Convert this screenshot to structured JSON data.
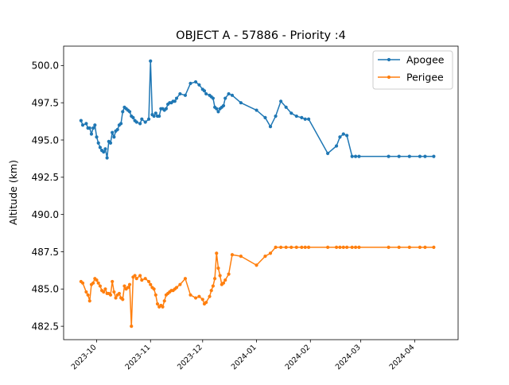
{
  "chart_data": {
    "type": "line",
    "title": "OBJECT A - 57886 - Priority :4",
    "xlabel": "",
    "ylabel": "Altitude (km)",
    "xlim": [
      "2023-09-12",
      "2024-04-26"
    ],
    "ylim": [
      481.6,
      501.3
    ],
    "y_ticks": [
      482.5,
      485.0,
      487.5,
      490.0,
      492.5,
      495.0,
      497.5,
      500.0
    ],
    "y_tick_labels": [
      "482.5",
      "485.0",
      "487.5",
      "490.0",
      "492.5",
      "495.0",
      "497.5",
      "500.0"
    ],
    "x_ticks": [
      "2023-10-01",
      "2023-11-01",
      "2023-12-01",
      "2024-01-01",
      "2024-02-01",
      "2024-03-01",
      "2024-04-01"
    ],
    "x_tick_labels": [
      "2023-10",
      "2023-11",
      "2023-12",
      "2024-01",
      "2024-02",
      "2024-03",
      "2024-04"
    ],
    "grid": false,
    "legend_position": "top-right",
    "series": [
      {
        "name": "Apogee",
        "color": "#1f77b4",
        "x": [
          "2023-09-22",
          "2023-09-23",
          "2023-09-25",
          "2023-09-26",
          "2023-09-27",
          "2023-09-28",
          "2023-09-29",
          "2023-09-30",
          "2023-10-01",
          "2023-10-02",
          "2023-10-03",
          "2023-10-04",
          "2023-10-05",
          "2023-10-06",
          "2023-10-07",
          "2023-10-08",
          "2023-10-09",
          "2023-10-10",
          "2023-10-11",
          "2023-10-12",
          "2023-10-13",
          "2023-10-14",
          "2023-10-15",
          "2023-10-16",
          "2023-10-17",
          "2023-10-18",
          "2023-10-19",
          "2023-10-20",
          "2023-10-21",
          "2023-10-22",
          "2023-10-23",
          "2023-10-24",
          "2023-10-26",
          "2023-10-27",
          "2023-10-29",
          "2023-10-31",
          "2023-11-01",
          "2023-11-02",
          "2023-11-03",
          "2023-11-04",
          "2023-11-05",
          "2023-11-06",
          "2023-11-07",
          "2023-11-08",
          "2023-11-09",
          "2023-11-10",
          "2023-11-11",
          "2023-11-12",
          "2023-11-13",
          "2023-11-14",
          "2023-11-15",
          "2023-11-16",
          "2023-11-18",
          "2023-11-21",
          "2023-11-24",
          "2023-11-27",
          "2023-11-29",
          "2023-12-01",
          "2023-12-02",
          "2023-12-03",
          "2023-12-05",
          "2023-12-06",
          "2023-12-07",
          "2023-12-08",
          "2023-12-09",
          "2023-12-10",
          "2023-12-11",
          "2023-12-12",
          "2023-12-13",
          "2023-12-14",
          "2023-12-16",
          "2023-12-18",
          "2023-12-23",
          "2024-01-01",
          "2024-01-06",
          "2024-01-09",
          "2024-01-12",
          "2024-01-15",
          "2024-01-18",
          "2024-01-21",
          "2024-01-24",
          "2024-01-27",
          "2024-01-29",
          "2024-01-31",
          "2024-02-11",
          "2024-02-16",
          "2024-02-18",
          "2024-02-20",
          "2024-02-22",
          "2024-02-25",
          "2024-02-27",
          "2024-02-29",
          "2024-03-17",
          "2024-03-23",
          "2024-03-29",
          "2024-04-04",
          "2024-04-07",
          "2024-04-12"
        ],
        "values": [
          496.3,
          496.0,
          496.1,
          495.8,
          495.8,
          495.4,
          495.8,
          496.0,
          495.2,
          494.8,
          494.5,
          494.3,
          494.2,
          494.4,
          493.8,
          494.9,
          494.8,
          495.5,
          495.2,
          495.6,
          495.7,
          496.0,
          496.1,
          496.9,
          497.2,
          497.1,
          497.0,
          496.9,
          496.6,
          496.5,
          496.3,
          496.2,
          496.1,
          496.4,
          496.2,
          496.4,
          500.3,
          496.7,
          496.6,
          496.8,
          496.6,
          496.6,
          497.1,
          497.1,
          497.0,
          497.1,
          497.4,
          497.5,
          497.5,
          497.6,
          497.6,
          497.8,
          498.1,
          498.0,
          498.8,
          498.9,
          498.7,
          498.4,
          498.3,
          498.1,
          498.0,
          497.9,
          497.8,
          497.2,
          497.1,
          496.9,
          497.1,
          497.2,
          497.3,
          497.8,
          498.1,
          498.0,
          497.5,
          497.0,
          496.5,
          495.9,
          496.6,
          497.6,
          497.2,
          496.8,
          496.6,
          496.5,
          496.4,
          496.4,
          494.1,
          494.6,
          495.2,
          495.4,
          495.3,
          493.9,
          493.9,
          493.9,
          493.9,
          493.9,
          493.9,
          493.9,
          493.9,
          493.9
        ]
      },
      {
        "name": "Perigee",
        "color": "#ff7f0e",
        "x": [
          "2023-09-22",
          "2023-09-23",
          "2023-09-25",
          "2023-09-26",
          "2023-09-27",
          "2023-09-28",
          "2023-09-29",
          "2023-09-30",
          "2023-10-01",
          "2023-10-02",
          "2023-10-03",
          "2023-10-04",
          "2023-10-05",
          "2023-10-06",
          "2023-10-07",
          "2023-10-08",
          "2023-10-09",
          "2023-10-10",
          "2023-10-11",
          "2023-10-12",
          "2023-10-13",
          "2023-10-14",
          "2023-10-15",
          "2023-10-16",
          "2023-10-17",
          "2023-10-18",
          "2023-10-19",
          "2023-10-20",
          "2023-10-21",
          "2023-10-22",
          "2023-10-23",
          "2023-10-24",
          "2023-10-26",
          "2023-10-27",
          "2023-10-29",
          "2023-10-31",
          "2023-11-01",
          "2023-11-02",
          "2023-11-03",
          "2023-11-04",
          "2023-11-05",
          "2023-11-06",
          "2023-11-07",
          "2023-11-08",
          "2023-11-09",
          "2023-11-10",
          "2023-11-11",
          "2023-11-12",
          "2023-11-13",
          "2023-11-14",
          "2023-11-15",
          "2023-11-16",
          "2023-11-18",
          "2023-11-21",
          "2023-11-24",
          "2023-11-27",
          "2023-11-29",
          "2023-12-01",
          "2023-12-02",
          "2023-12-03",
          "2023-12-05",
          "2023-12-06",
          "2023-12-07",
          "2023-12-08",
          "2023-12-09",
          "2023-12-10",
          "2023-12-11",
          "2023-12-12",
          "2023-12-13",
          "2023-12-14",
          "2023-12-16",
          "2023-12-18",
          "2023-12-23",
          "2024-01-01",
          "2024-01-06",
          "2024-01-09",
          "2024-01-12",
          "2024-01-15",
          "2024-01-18",
          "2024-01-21",
          "2024-01-24",
          "2024-01-27",
          "2024-01-29",
          "2024-01-31",
          "2024-02-11",
          "2024-02-16",
          "2024-02-18",
          "2024-02-20",
          "2024-02-22",
          "2024-02-25",
          "2024-02-27",
          "2024-02-29",
          "2024-03-17",
          "2024-03-23",
          "2024-03-29",
          "2024-04-04",
          "2024-04-07",
          "2024-04-12"
        ],
        "values": [
          485.5,
          485.4,
          484.8,
          484.6,
          484.2,
          485.3,
          485.4,
          485.7,
          485.6,
          485.4,
          485.2,
          484.9,
          484.8,
          485.0,
          484.7,
          484.7,
          484.6,
          485.5,
          484.8,
          484.4,
          484.6,
          484.7,
          484.4,
          484.3,
          485.2,
          485.0,
          485.1,
          485.3,
          482.5,
          485.8,
          485.9,
          485.7,
          485.9,
          485.6,
          485.7,
          485.5,
          485.3,
          485.1,
          485.0,
          484.6,
          484.0,
          483.8,
          483.9,
          483.8,
          484.2,
          484.6,
          484.7,
          484.8,
          484.9,
          484.9,
          485.0,
          485.1,
          485.3,
          485.7,
          484.6,
          484.4,
          484.5,
          484.3,
          484.0,
          484.1,
          484.5,
          484.9,
          485.2,
          485.7,
          487.4,
          486.4,
          485.9,
          485.3,
          485.4,
          485.6,
          486.0,
          487.3,
          487.2,
          486.6,
          487.2,
          487.4,
          487.8,
          487.8,
          487.8,
          487.8,
          487.8,
          487.8,
          487.8,
          487.8,
          487.8,
          487.8,
          487.8,
          487.8,
          487.8,
          487.8,
          487.8,
          487.8,
          487.8,
          487.8,
          487.8,
          487.8,
          487.8,
          487.8
        ]
      }
    ]
  }
}
